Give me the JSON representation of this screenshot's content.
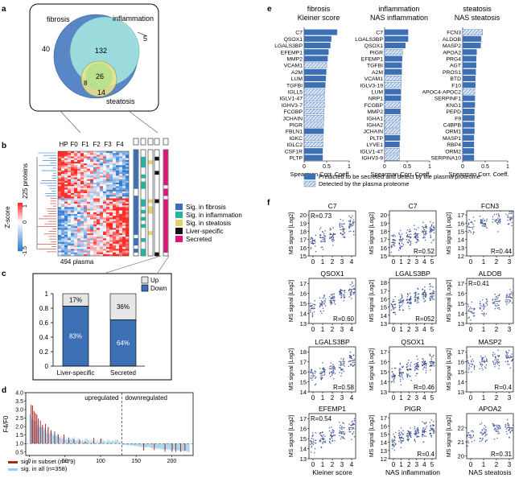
{
  "panel_letters": {
    "a": "a",
    "b": "b",
    "c": "c",
    "d": "d",
    "e": "e",
    "f": "f"
  },
  "panel_a": {
    "labels": {
      "fibrosis": "fibrosis",
      "inflammation": "inflammation",
      "steatosis": "steatosis"
    },
    "counts": {
      "fib_only": "40",
      "fib_infl": "132",
      "infl_only": "5",
      "all3": "26",
      "fib_ste": "8",
      "ste_only": "14"
    },
    "colors": {
      "fibrosis": "#4f7fc4",
      "inflammation": "#9fdede",
      "steatosis": "#f2e48a"
    }
  },
  "panel_b": {
    "column_labels": [
      "HP",
      "F0",
      "F1",
      "F2",
      "F3",
      "F4"
    ],
    "row_label": "225 proteins",
    "bottom_label": "494 plasma",
    "zscore_label": "Z-score",
    "zscore_ticks": [
      "1",
      "0",
      "-1.5"
    ],
    "legend": [
      {
        "label": "Sig. in fibrosis",
        "color": "#3a70b8"
      },
      {
        "label": "Sig. in inflammation",
        "color": "#27b3a3"
      },
      {
        "label": "Sig. in steatosis",
        "color": "#e3d16a"
      },
      {
        "label": "Liver-specific",
        "color": "#111111"
      },
      {
        "label": "Secreted",
        "color": "#e0147a"
      }
    ]
  },
  "panel_c": {
    "chart_data": {
      "type": "bar",
      "categories": [
        "Liver-specific",
        "Secreted"
      ],
      "series": [
        {
          "name": "Up",
          "values": [
            0.17,
            0.36
          ]
        },
        {
          "name": "Down",
          "values": [
            0.83,
            0.64
          ]
        }
      ],
      "ylim": [
        0,
        1
      ],
      "yticks": [
        "0",
        "0.2",
        "0.4",
        "0.6",
        "0.8",
        "1"
      ],
      "data_labels_up": [
        "17%",
        "36%"
      ],
      "data_labels_down": [
        "83%",
        "64%"
      ],
      "colors": {
        "Up": "#e6e6e6",
        "Down": "#3d6fb4"
      }
    }
  },
  "panel_d": {
    "chart_data": {
      "type": "bar",
      "ylabel": "F4/F0",
      "yticks": [
        "0.5",
        "1.0",
        "1.5",
        "2.0",
        "2.5",
        "3.0",
        "3.5",
        "4.0"
      ],
      "xticks": [
        "0",
        "50",
        "100",
        "150",
        "200"
      ],
      "ylim": [
        0.3,
        4.0
      ],
      "xlim": [
        -5,
        230
      ],
      "threshold": 1.0,
      "divider_x": 130,
      "annotations": {
        "up": "upregulated",
        "down": "downregulated"
      },
      "legend": [
        {
          "label": "sig. in subset (n=79)",
          "color": "#a52a2a"
        },
        {
          "label": "sig. in all (n=358)",
          "color": "#9fd0ea"
        }
      ]
    }
  },
  "panel_e": {
    "chart_data": [
      {
        "type": "bar",
        "title": "fibrosis",
        "subtitle": "Kleiner score",
        "categories": [
          "C7",
          "QSOX1",
          "LGALS3BP",
          "EFEMP1",
          "MMP2",
          "VCAM1",
          "A2M",
          "LUM",
          "TGFBI",
          "IGLL5",
          "IGLV1-47",
          "IGHV3-7",
          "FCGBP",
          "JCHAIN",
          "PIGR",
          "FBLN1",
          "IGKC",
          "IGLC2",
          "CSF1R",
          "PLTP"
        ],
        "values": [
          0.73,
          0.6,
          0.58,
          0.54,
          0.52,
          0.5,
          0.49,
          0.48,
          0.47,
          0.46,
          0.45,
          0.45,
          0.44,
          0.44,
          0.43,
          0.43,
          0.42,
          0.42,
          0.41,
          0.41
        ],
        "detected_only": [
          false,
          false,
          false,
          false,
          false,
          true,
          false,
          false,
          false,
          true,
          true,
          true,
          true,
          true,
          true,
          false,
          true,
          true,
          false,
          false
        ]
      },
      {
        "type": "bar",
        "title": "inflammation",
        "subtitle": "NAS inflammation",
        "categories": [
          "C7",
          "LGALS3BP",
          "QSOX1",
          "PIGR",
          "EFEMP1",
          "TGFBI",
          "A2M",
          "VCAM1",
          "IGLV3-19",
          "LUM",
          "NRP1",
          "FCGBP",
          "MMP2",
          "IGHA1",
          "IGHA2",
          "JCHAIN",
          "PLTP",
          "LYVE1",
          "IGLV1-47",
          "IGHV3-9"
        ],
        "values": [
          0.52,
          0.52,
          0.46,
          0.4,
          0.39,
          0.38,
          0.38,
          0.37,
          0.37,
          0.36,
          0.36,
          0.35,
          0.35,
          0.35,
          0.34,
          0.34,
          0.34,
          0.33,
          0.33,
          0.33
        ],
        "detected_only": [
          false,
          false,
          false,
          true,
          false,
          false,
          false,
          true,
          true,
          false,
          false,
          true,
          false,
          true,
          true,
          true,
          false,
          false,
          true,
          true
        ]
      },
      {
        "type": "bar",
        "title": "steatosis",
        "subtitle": "NAS steatosis",
        "categories": [
          "FCN3",
          "ALDOB",
          "MASP2",
          "APOA2",
          "PRG4",
          "AGT",
          "PROS1",
          "BTD",
          "F10",
          "APOC4-APOC2",
          "SERPINF1",
          "KNG1",
          "PEPD",
          "F9",
          "C4BPB",
          "ORM1",
          "MASP1",
          "RBP4",
          "ORM2",
          "SERPINA10"
        ],
        "values": [
          0.44,
          0.41,
          0.4,
          0.31,
          0.3,
          0.3,
          0.29,
          0.28,
          0.28,
          0.27,
          0.27,
          0.27,
          0.26,
          0.26,
          0.26,
          0.26,
          0.25,
          0.25,
          0.25,
          0.25
        ],
        "detected_only": [
          true,
          false,
          false,
          false,
          false,
          false,
          false,
          false,
          false,
          true,
          false,
          false,
          false,
          false,
          false,
          false,
          false,
          false,
          false,
          false
        ]
      }
    ],
    "xlabel": "Spearman Corr. Coeff.",
    "xticks": [
      "0",
      "0.5",
      "1"
    ],
    "legend": [
      {
        "label": "Predicted to be secreted and detect by the plasma proteome",
        "style": "solid"
      },
      {
        "label": "Detected by the plasma proteome",
        "style": "hatched"
      }
    ],
    "bar_color": "#3d6fb4"
  },
  "panel_f": {
    "ylabel": "MS signal [Log2]",
    "xlabels": [
      "Kleiner score",
      "NAS inflammation",
      "NAS steatosis"
    ],
    "chart_data": [
      {
        "type": "scatter",
        "title": "C7",
        "r": "R=0.73",
        "xticks": [
          "0",
          "1",
          "2",
          "3",
          "4"
        ],
        "yticks": [
          "15",
          "16",
          "17",
          "18",
          "19",
          "20"
        ],
        "ylim": [
          15,
          20.5
        ],
        "r_pos": "top-left",
        "means": [
          16.5,
          17.2,
          17.6,
          18.2,
          18.8
        ]
      },
      {
        "type": "scatter",
        "title": "C7",
        "r": "R=0.52",
        "xticks": [
          "0",
          "1",
          "2",
          "3",
          "4",
          "5"
        ],
        "yticks": [
          "15",
          "16",
          "17",
          "18",
          "19",
          "20"
        ],
        "ylim": [
          15,
          20.5
        ],
        "r_pos": "bottom-right",
        "means": [
          16.6,
          17.0,
          17.3,
          17.7,
          18.0,
          18.2
        ]
      },
      {
        "type": "scatter",
        "title": "FCN3",
        "r": "R=0.44",
        "xticks": [
          "0",
          "1",
          "2",
          "3"
        ],
        "yticks": [
          "12",
          "13",
          "14",
          "15",
          "16",
          "17"
        ],
        "ylim": [
          12,
          17.5
        ],
        "r_pos": "bottom-right",
        "means": [
          15.5,
          16.0,
          16.4,
          16.7
        ]
      },
      {
        "type": "scatter",
        "title": "QSOX1",
        "r": "R=0.60",
        "xticks": [
          "0",
          "1",
          "2",
          "3",
          "4"
        ],
        "yticks": [
          "13",
          "14",
          "15",
          "16",
          "17"
        ],
        "ylim": [
          13,
          17.5
        ],
        "r_pos": "bottom-right",
        "means": [
          14.5,
          15.0,
          15.3,
          15.9,
          16.4
        ]
      },
      {
        "type": "scatter",
        "title": "LGALS3BP",
        "r": "R=052",
        "xticks": [
          "0",
          "1",
          "2",
          "3",
          "4",
          "5"
        ],
        "yticks": [
          "13",
          "14",
          "15",
          "16",
          "17",
          "18"
        ],
        "ylim": [
          13,
          18.5
        ],
        "r_pos": "bottom-right",
        "means": [
          15.3,
          15.6,
          15.9,
          16.2,
          16.5,
          16.7
        ]
      },
      {
        "type": "scatter",
        "title": "ALDOB",
        "r": "R=0.41",
        "xticks": [
          "0",
          "1",
          "2",
          "3"
        ],
        "yticks": [
          "13",
          "14",
          "15",
          "16",
          "17"
        ],
        "ylim": [
          13,
          17.5
        ],
        "r_pos": "top-left",
        "means": [
          14.2,
          14.7,
          15.2,
          15.6
        ]
      },
      {
        "type": "scatter",
        "title": "LGALS3BP",
        "r": "R=0.58",
        "xticks": [
          "0",
          "1",
          "2",
          "3",
          "4"
        ],
        "yticks": [
          "14",
          "15",
          "16",
          "17",
          "18"
        ],
        "ylim": [
          14,
          18.5
        ],
        "r_pos": "bottom-right",
        "means": [
          15.6,
          16.0,
          16.3,
          16.7,
          17.1
        ]
      },
      {
        "type": "scatter",
        "title": "QSOX1",
        "r": "R=0.46",
        "xticks": [
          "0",
          "1",
          "2",
          "3",
          "4",
          "5"
        ],
        "yticks": [
          "13",
          "14",
          "15",
          "16",
          "17"
        ],
        "ylim": [
          13,
          17.5
        ],
        "r_pos": "bottom-right",
        "means": [
          14.6,
          14.9,
          15.2,
          15.5,
          15.8,
          16.0
        ]
      },
      {
        "type": "scatter",
        "title": "MASP2",
        "r": "R=0.4",
        "xticks": [
          "0",
          "1",
          "2",
          "3"
        ],
        "yticks": [
          "13",
          "14",
          "15",
          "16",
          "17"
        ],
        "ylim": [
          13,
          17.5
        ],
        "r_pos": "bottom-right",
        "means": [
          15.8,
          16.0,
          16.2,
          16.4
        ]
      },
      {
        "type": "scatter",
        "title": "EFEMP1",
        "r": "R=0.54",
        "xticks": [
          "0",
          "1",
          "2",
          "3",
          "4"
        ],
        "yticks": [
          "13",
          "14",
          "15",
          "16",
          "17"
        ],
        "ylim": [
          13,
          17.5
        ],
        "r_pos": "top-left",
        "means": [
          14.6,
          15.0,
          15.3,
          15.7,
          16.1
        ]
      },
      {
        "type": "scatter",
        "title": "PIGR",
        "r": "R=0.4",
        "xticks": [
          "0",
          "1",
          "2",
          "3",
          "4",
          "5"
        ],
        "yticks": [
          "12",
          "13",
          "14",
          "15",
          "16",
          "17"
        ],
        "ylim": [
          12,
          17.5
        ],
        "r_pos": "bottom-right",
        "means": [
          14.2,
          14.5,
          14.8,
          15.1,
          15.3,
          15.5
        ]
      },
      {
        "type": "scatter",
        "title": "APOA2",
        "r": "R=0.31",
        "xticks": [
          "0",
          "1",
          "2",
          "3"
        ],
        "yticks": [
          "20",
          "21",
          "22"
        ],
        "ylim": [
          19.8,
          23
        ],
        "r_pos": "bottom-right",
        "means": [
          21.3,
          21.6,
          21.9,
          22.0
        ]
      }
    ],
    "point_color": "#1f3a93"
  }
}
